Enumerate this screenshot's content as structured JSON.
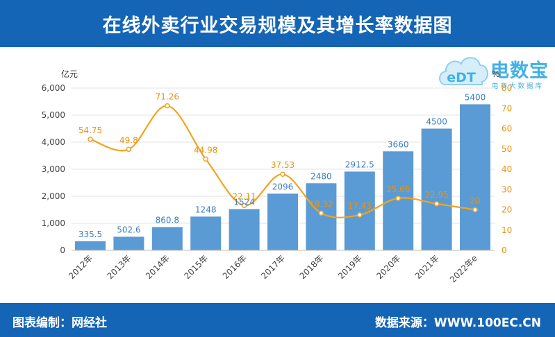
{
  "header": {
    "title": "在线外卖行业交易规模及其增长率数据图"
  },
  "footer": {
    "left": "图表编制：网经社",
    "right": "数据来源：WWW.100EC.CN"
  },
  "logo": {
    "mark": "eDT",
    "name": "电数宝",
    "tagline": "电商大数据库"
  },
  "colors": {
    "header_bg": "#1565b7",
    "bar": "#5b9bd5",
    "line": "#f4a31d",
    "bar_label": "#3b7fc6",
    "line_label": "#e8930c"
  },
  "chart_data": {
    "type": "bar",
    "categories": [
      "2012年",
      "2013年",
      "2014年",
      "2015年",
      "2016年",
      "2017年",
      "2018年",
      "2019年",
      "2020年",
      "2021年",
      "2022年e"
    ],
    "series": [
      {
        "type": "bar",
        "axis": "left",
        "values": [
          335.5,
          502.6,
          860.8,
          1248,
          1524,
          2096,
          2480,
          2912.5,
          3660,
          4500,
          5400
        ]
      },
      {
        "type": "line",
        "axis": "right",
        "smooth": true,
        "values": [
          54.75,
          49.8,
          71.26,
          44.98,
          22.11,
          37.53,
          18.32,
          17.43,
          25.66,
          22.95,
          20
        ]
      }
    ],
    "ylabel_left": "亿元",
    "ylabel_right": "%",
    "ylim_left": [
      0,
      6000
    ],
    "yticks_left": [
      "0",
      "1,000",
      "2,000",
      "3,000",
      "4,000",
      "5,000",
      "6,000"
    ],
    "ylim_right": [
      0,
      80
    ],
    "yticks_right": [
      "0",
      "10",
      "20",
      "30",
      "40",
      "50",
      "60",
      "70",
      "80"
    ],
    "grid": true
  }
}
